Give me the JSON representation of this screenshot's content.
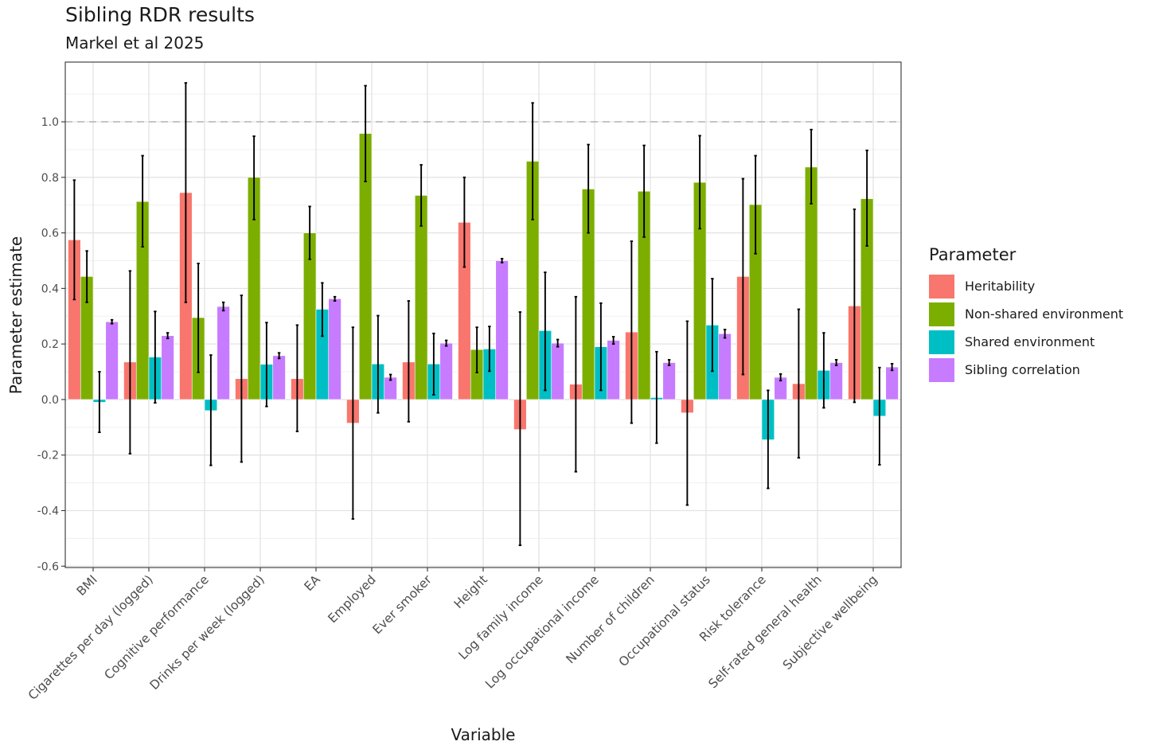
{
  "title": "Sibling RDR results",
  "subtitle": "Markel et al 2025",
  "legend": {
    "title": "Parameter",
    "items": [
      {
        "label": "Heritability",
        "color": "#F8766D"
      },
      {
        "label": "Non-shared environment",
        "color": "#7CAE00"
      },
      {
        "label": "Shared environment",
        "color": "#00BFC4"
      },
      {
        "label": "Sibling correlation",
        "color": "#C77CFF"
      }
    ]
  },
  "chart_data": {
    "type": "bar",
    "xlabel": "Variable",
    "ylabel": "Parameter estimate",
    "ylim": [
      -0.605,
      1.215
    ],
    "yticks": [
      -0.6,
      -0.4,
      -0.2,
      0.0,
      0.2,
      0.4,
      0.6,
      0.8,
      1.0
    ],
    "ytick_labels": [
      "-0.6",
      "-0.4",
      "-0.2",
      "0.0",
      "0.2",
      "0.4",
      "0.6",
      "0.8",
      "1.0"
    ],
    "reference_line": 1.0,
    "grid": true,
    "legend_position": "right",
    "categories": [
      "BMI",
      "Cigarettes per day (logged)",
      "Cognitive performance",
      "Drinks per week (logged)",
      "EA",
      "Employed",
      "Ever smoker",
      "Height",
      "Log family income",
      "Log occupational income",
      "Number of children",
      "Occupational status",
      "Risk tolerance",
      "Self-rated general health",
      "Subjective wellbeing"
    ],
    "series": [
      {
        "name": "Heritability",
        "values": [
          0.575,
          0.135,
          0.745,
          0.075,
          0.075,
          -0.085,
          0.135,
          0.638,
          -0.108,
          0.055,
          0.243,
          -0.048,
          0.443,
          0.057,
          0.337
        ],
        "lower": [
          0.36,
          -0.195,
          0.35,
          -0.225,
          -0.115,
          -0.43,
          -0.08,
          0.477,
          -0.525,
          -0.26,
          -0.085,
          -0.38,
          0.09,
          -0.21,
          -0.01
        ],
        "upper": [
          0.79,
          0.463,
          1.14,
          0.375,
          0.268,
          0.26,
          0.355,
          0.8,
          0.315,
          0.37,
          0.57,
          0.282,
          0.795,
          0.325,
          0.685
        ]
      },
      {
        "name": "Non-shared environment",
        "values": [
          0.443,
          0.713,
          0.295,
          0.8,
          0.6,
          0.958,
          0.735,
          0.18,
          0.858,
          0.758,
          0.75,
          0.782,
          0.702,
          0.837,
          0.723
        ],
        "lower": [
          0.35,
          0.55,
          0.098,
          0.648,
          0.505,
          0.785,
          0.625,
          0.097,
          0.648,
          0.6,
          0.585,
          0.615,
          0.525,
          0.705,
          0.553
        ],
        "upper": [
          0.535,
          0.878,
          0.49,
          0.948,
          0.695,
          1.13,
          0.845,
          0.26,
          1.068,
          0.918,
          0.915,
          0.95,
          0.878,
          0.972,
          0.897
        ]
      },
      {
        "name": "Shared environment",
        "values": [
          -0.01,
          0.153,
          -0.04,
          0.127,
          0.325,
          0.128,
          0.128,
          0.182,
          0.248,
          0.19,
          0.007,
          0.268,
          -0.145,
          0.105,
          -0.06
        ],
        "lower": [
          -0.118,
          -0.012,
          -0.237,
          -0.025,
          0.228,
          -0.048,
          0.017,
          0.102,
          0.033,
          0.033,
          -0.157,
          0.102,
          -0.32,
          -0.03,
          -0.235
        ],
        "upper": [
          0.1,
          0.317,
          0.16,
          0.277,
          0.42,
          0.302,
          0.238,
          0.263,
          0.458,
          0.347,
          0.172,
          0.435,
          0.033,
          0.24,
          0.115
        ]
      },
      {
        "name": "Sibling correlation",
        "values": [
          0.28,
          0.23,
          0.335,
          0.158,
          0.363,
          0.08,
          0.203,
          0.5,
          0.203,
          0.213,
          0.133,
          0.237,
          0.08,
          0.133,
          0.117
        ],
        "lower": [
          0.273,
          0.22,
          0.32,
          0.148,
          0.355,
          0.07,
          0.193,
          0.493,
          0.19,
          0.2,
          0.123,
          0.222,
          0.068,
          0.123,
          0.105
        ],
        "upper": [
          0.287,
          0.24,
          0.35,
          0.168,
          0.37,
          0.09,
          0.213,
          0.507,
          0.216,
          0.226,
          0.143,
          0.252,
          0.092,
          0.143,
          0.129
        ]
      }
    ]
  }
}
